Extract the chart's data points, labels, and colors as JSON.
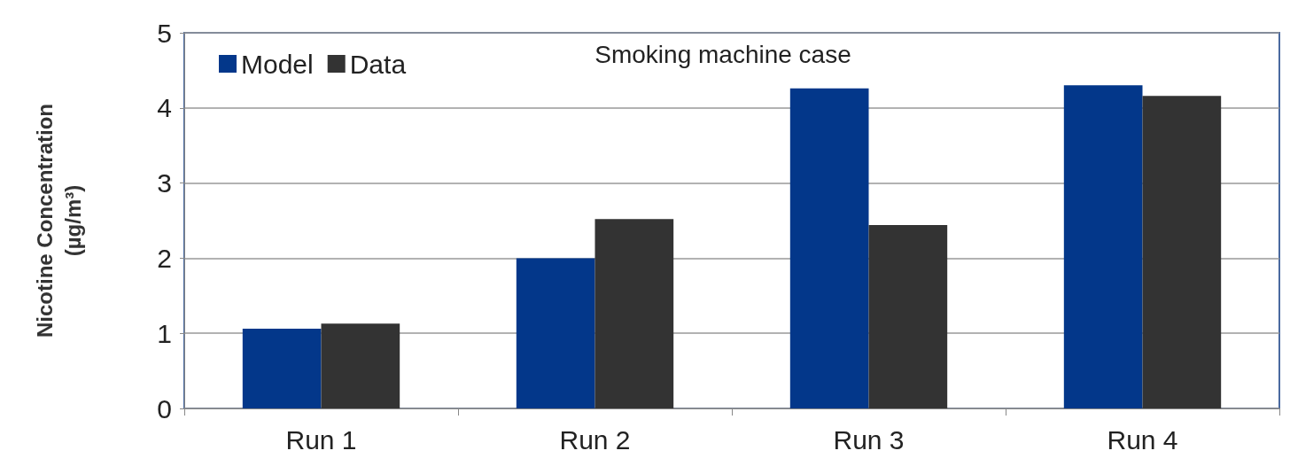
{
  "chart_data": {
    "type": "bar",
    "title": "Smoking machine case",
    "ylabel": "Nicotine Concentration\n(µg/m³)",
    "categories": [
      "Run 1",
      "Run 2",
      "Run 3",
      "Run 4"
    ],
    "series": [
      {
        "name": "Model",
        "color": "#03378a",
        "values": [
          1.06,
          2.0,
          4.26,
          4.3
        ]
      },
      {
        "name": "Data",
        "color": "#333333",
        "values": [
          1.13,
          2.52,
          2.44,
          4.16
        ]
      }
    ],
    "ylim": [
      0,
      5
    ],
    "yticks": [
      0,
      1,
      2,
      3,
      4,
      5
    ],
    "grid": "y",
    "legend": "top left"
  }
}
